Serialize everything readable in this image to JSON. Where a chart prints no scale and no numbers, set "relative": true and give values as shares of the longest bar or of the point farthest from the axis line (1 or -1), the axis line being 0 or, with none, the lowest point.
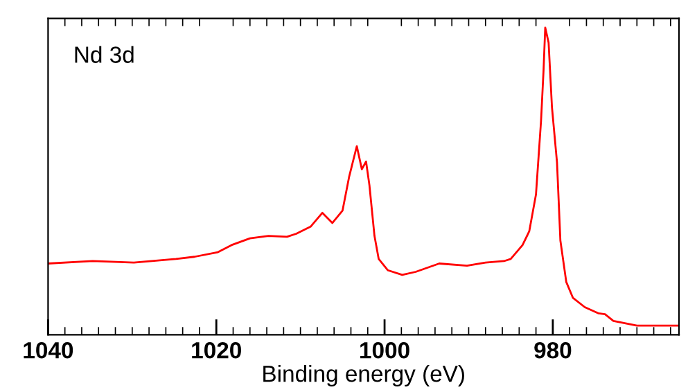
{
  "chart_data": {
    "type": "line",
    "relative": true,
    "xlabel": "Binding energy (eV)",
    "annotations": [
      "Nd 3d"
    ],
    "xlim": [
      1040,
      965
    ],
    "xticks": [
      1040,
      1020,
      1000,
      980
    ],
    "tick_labels": "x",
    "grid": false,
    "legend": false,
    "marker": "none",
    "line_style": "solid",
    "series": [
      {
        "color": "#ff0000",
        "x": [
          1040,
          1034.7,
          1029.8,
          1024.8,
          1022.6,
          1019.8,
          1018.2,
          1016.0,
          1013.8,
          1011.6,
          1010.5,
          1008.8,
          1007.4,
          1006.2,
          1005.0,
          1004.2,
          1003.3,
          1002.7,
          1002.2,
          1001.8,
          1001.2,
          1000.7,
          999.6,
          997.9,
          996.3,
          993.5,
          990.2,
          988.0,
          985.8,
          985.0,
          983.6,
          982.8,
          982.0,
          981.4,
          981.1,
          980.9,
          980.5,
          980.1,
          979.5,
          979.1,
          978.4,
          977.6,
          976.2,
          974.6,
          973.8,
          972.8,
          970.0,
          965.0
        ],
        "values": [
          0.232,
          0.24,
          0.235,
          0.247,
          0.254,
          0.269,
          0.292,
          0.314,
          0.322,
          0.319,
          0.329,
          0.352,
          0.397,
          0.364,
          0.404,
          0.516,
          0.614,
          0.539,
          0.564,
          0.487,
          0.322,
          0.247,
          0.21,
          0.195,
          0.205,
          0.232,
          0.225,
          0.235,
          0.24,
          0.247,
          0.292,
          0.337,
          0.457,
          0.696,
          0.861,
          1,
          0.951,
          0.741,
          0.561,
          0.307,
          0.172,
          0.12,
          0.09,
          0.07,
          0.067,
          0.045,
          0.03,
          0.03
        ]
      }
    ]
  }
}
